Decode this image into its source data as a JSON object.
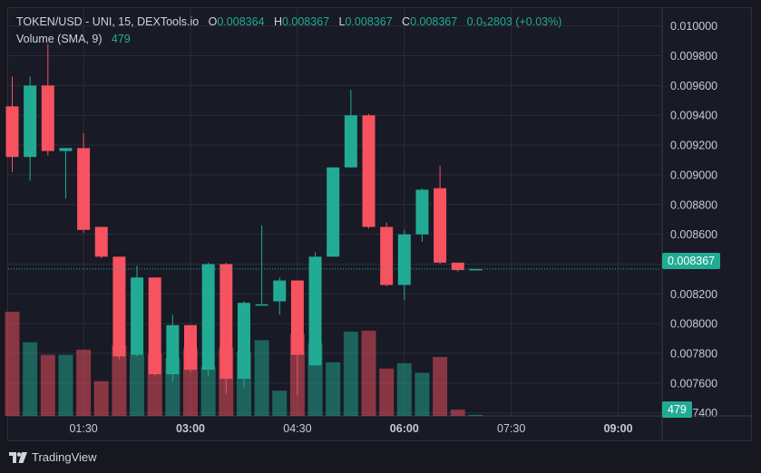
{
  "header": {
    "symbol": "TOKEN/USD - UNI, 15, DEXTools.io",
    "open_label": "O",
    "open": "0.008364",
    "high_label": "H",
    "high": "0.008367",
    "low_label": "L",
    "low": "0.008367",
    "close_label": "C",
    "close": "0.008367",
    "change": "0.0₅2803 (+0.03%)",
    "volume_label": "Volume (SMA, 9)",
    "volume_value": "479"
  },
  "price_tag": "0.008367",
  "volume_tag": "479",
  "footer": {
    "brand": "TradingView"
  },
  "colors": {
    "up": "#22ab94",
    "down": "#f7525f",
    "grid": "#2a2d3a",
    "background": "#181a25"
  },
  "chart_data": {
    "type": "candlestick",
    "y_ticks": [
      "0.010000",
      "0.009800",
      "0.009600",
      "0.009400",
      "0.009200",
      "0.009000",
      "0.008800",
      "0.008600",
      "0.008400",
      "0.008200",
      "0.008000",
      "0.007800",
      "0.007600",
      "0.007400"
    ],
    "x_ticks": [
      {
        "label": "01:30",
        "index": 4,
        "bold": false
      },
      {
        "label": "03:00",
        "index": 10,
        "bold": true
      },
      {
        "label": "04:30",
        "index": 16,
        "bold": false
      },
      {
        "label": "06:00",
        "index": 22,
        "bold": true
      },
      {
        "label": "07:30",
        "index": 28,
        "bold": false
      },
      {
        "label": "09:00",
        "index": 34,
        "bold": true
      }
    ],
    "ylim": [
      0.00738,
      0.01012
    ],
    "last_price": 0.008367,
    "candles": [
      {
        "o": 0.00946,
        "h": 0.00966,
        "l": 0.00902,
        "c": 0.00912,
        "v": 990
      },
      {
        "o": 0.00912,
        "h": 0.00966,
        "l": 0.00896,
        "c": 0.0096,
        "v": 700
      },
      {
        "o": 0.0096,
        "h": 0.00988,
        "l": 0.00913,
        "c": 0.00916,
        "v": 580
      },
      {
        "o": 0.00916,
        "h": 0.00918,
        "l": 0.00884,
        "c": 0.00918,
        "v": 580
      },
      {
        "o": 0.00918,
        "h": 0.00928,
        "l": 0.00861,
        "c": 0.00863,
        "v": 630
      },
      {
        "o": 0.00865,
        "h": 0.00865,
        "l": 0.00844,
        "c": 0.00845,
        "v": 330
      },
      {
        "o": 0.00845,
        "h": 0.00845,
        "l": 0.00776,
        "c": 0.00778,
        "v": 670
      },
      {
        "o": 0.00779,
        "h": 0.00839,
        "l": 0.00778,
        "c": 0.00831,
        "v": 580
      },
      {
        "o": 0.00831,
        "h": 0.00831,
        "l": 0.00765,
        "c": 0.00766,
        "v": 590
      },
      {
        "o": 0.00766,
        "h": 0.00806,
        "l": 0.00761,
        "c": 0.00799,
        "v": 550
      },
      {
        "o": 0.00799,
        "h": 0.00799,
        "l": 0.00767,
        "c": 0.00769,
        "v": 640
      },
      {
        "o": 0.00769,
        "h": 0.00841,
        "l": 0.00765,
        "c": 0.0084,
        "v": 470
      },
      {
        "o": 0.0084,
        "h": 0.00841,
        "l": 0.00753,
        "c": 0.00763,
        "v": 650
      },
      {
        "o": 0.00763,
        "h": 0.00815,
        "l": 0.00757,
        "c": 0.00814,
        "v": 610
      },
      {
        "o": 0.00813,
        "h": 0.00866,
        "l": 0.00813,
        "c": 0.00813,
        "v": 720
      },
      {
        "o": 0.00815,
        "h": 0.00831,
        "l": 0.00806,
        "c": 0.00829,
        "v": 240
      },
      {
        "o": 0.00829,
        "h": 0.00829,
        "l": 0.00752,
        "c": 0.00779,
        "v": 780
      },
      {
        "o": 0.00772,
        "h": 0.00848,
        "l": 0.00772,
        "c": 0.00845,
        "v": 690
      },
      {
        "o": 0.00845,
        "h": 0.00905,
        "l": 0.00845,
        "c": 0.00905,
        "v": 510
      },
      {
        "o": 0.00905,
        "h": 0.00957,
        "l": 0.00905,
        "c": 0.0094,
        "v": 800
      },
      {
        "o": 0.0094,
        "h": 0.00941,
        "l": 0.00864,
        "c": 0.00865,
        "v": 810
      },
      {
        "o": 0.00865,
        "h": 0.00868,
        "l": 0.00825,
        "c": 0.00826,
        "v": 450
      },
      {
        "o": 0.00826,
        "h": 0.00863,
        "l": 0.00816,
        "c": 0.0086,
        "v": 500
      },
      {
        "o": 0.0086,
        "h": 0.00891,
        "l": 0.00855,
        "c": 0.0089,
        "v": 410
      },
      {
        "o": 0.00891,
        "h": 0.00906,
        "l": 0.0084,
        "c": 0.00841,
        "v": 560
      },
      {
        "o": 0.00841,
        "h": 0.00841,
        "l": 0.00835,
        "c": 0.00836,
        "v": 60
      },
      {
        "o": 0.008364,
        "h": 0.008367,
        "l": 0.008367,
        "c": 0.008367,
        "v": 10
      }
    ]
  }
}
